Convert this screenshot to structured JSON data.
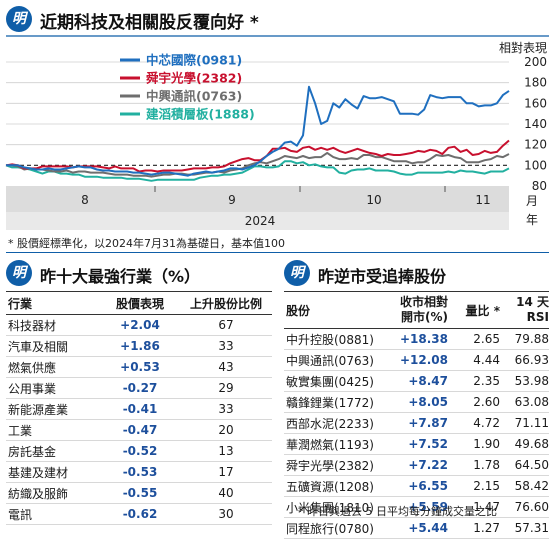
{
  "colors": {
    "brand": "#0f5ea8",
    "smic": "#1f6fbf",
    "sunny": "#c8102e",
    "zte": "#6e6e6e",
    "jianto": "#22b0a0",
    "band": "#dcdcdc"
  },
  "top": {
    "badge": "明",
    "title": "近期科技及相關股反覆向好 *",
    "footnote": "* 股價經標準化，以2024年7月31為基礎日，基本值100"
  },
  "chart_data": {
    "type": "line",
    "title": "近期科技及相關股反覆向好 *",
    "ylabel": "相對表現",
    "xlabel": "月",
    "xlabel2": "年",
    "year_label": "2024",
    "x_month_ticks": [
      "8",
      "9",
      "10",
      "11"
    ],
    "ylim": [
      80,
      200
    ],
    "y_ticks": [
      80,
      100,
      120,
      140,
      160,
      180,
      200
    ],
    "n_days": 84,
    "series": [
      {
        "name": "中芯國際(0981)",
        "color": "#1f6fbf",
        "values": [
          100,
          100,
          100,
          98,
          97,
          96,
          96,
          97,
          96,
          96,
          97,
          98,
          99,
          98,
          98,
          96,
          95,
          95,
          94,
          94,
          94,
          93,
          93,
          92,
          91,
          92,
          93,
          93,
          92,
          91,
          90,
          92,
          93,
          94,
          93,
          94,
          95,
          97,
          97,
          96,
          98,
          100,
          104,
          109,
          113,
          116,
          122,
          123,
          119,
          129,
          176,
          160,
          140,
          143,
          160,
          156,
          164,
          159,
          155,
          167,
          165,
          165,
          166,
          164,
          162,
          150,
          150,
          150,
          149,
          154,
          168,
          166,
          165,
          166,
          166,
          166,
          160,
          160,
          157,
          158,
          158,
          160,
          168,
          172
        ]
      },
      {
        "name": "舜宇光學(2382)",
        "color": "#c8102e",
        "values": [
          100,
          101,
          100,
          97,
          97,
          97,
          99,
          99,
          99,
          99,
          99,
          98,
          99,
          99,
          99,
          99,
          98,
          97,
          99,
          97,
          97,
          97,
          94,
          95,
          95,
          94,
          95,
          95,
          95,
          95,
          96,
          97,
          97,
          97,
          98,
          98,
          99,
          102,
          104,
          106,
          107,
          105,
          105,
          109,
          116,
          116,
          117,
          114,
          113,
          117,
          118,
          115,
          117,
          115,
          117,
          114,
          112,
          114,
          116,
          114,
          112,
          111,
          109,
          111,
          110,
          110,
          111,
          112,
          114,
          113,
          115,
          114,
          111,
          117,
          118,
          113,
          115,
          110,
          111,
          114,
          112,
          113,
          119,
          124
        ]
      },
      {
        "name": "中興通訊(0763)",
        "color": "#6e6e6e",
        "values": [
          100,
          100,
          99,
          96,
          97,
          96,
          96,
          95,
          94,
          94,
          95,
          93,
          94,
          94,
          93,
          93,
          93,
          92,
          91,
          91,
          91,
          90,
          90,
          90,
          89,
          90,
          91,
          91,
          92,
          92,
          91,
          91,
          92,
          93,
          93,
          94,
          93,
          95,
          96,
          97,
          100,
          102,
          103,
          102,
          104,
          106,
          109,
          108,
          107,
          109,
          107,
          108,
          108,
          112,
          108,
          106,
          106,
          107,
          106,
          110,
          110,
          108,
          108,
          106,
          104,
          104,
          104,
          102,
          103,
          103,
          106,
          110,
          109,
          110,
          108,
          107,
          103,
          103,
          103,
          105,
          106,
          109,
          108,
          111
        ]
      },
      {
        "name": "建滔積層板(1888)",
        "color": "#22b0a0",
        "values": [
          100,
          98,
          98,
          97,
          96,
          94,
          92,
          94,
          94,
          92,
          92,
          91,
          91,
          89,
          89,
          89,
          88,
          88,
          88,
          88,
          87,
          87,
          87,
          86,
          85,
          86,
          86,
          86,
          86,
          86,
          86,
          86,
          88,
          89,
          90,
          90,
          91,
          91,
          92,
          93,
          96,
          99,
          99,
          98,
          98,
          99,
          104,
          104,
          102,
          103,
          100,
          101,
          99,
          98,
          98,
          93,
          92,
          95,
          96,
          96,
          97,
          95,
          95,
          95,
          94,
          92,
          91,
          91,
          93,
          93,
          93,
          93,
          93,
          94,
          93,
          95,
          94,
          94,
          93,
          92,
          94,
          94,
          94,
          97
        ]
      }
    ]
  },
  "left": {
    "badge": "明",
    "title": "昨十大最強行業（%）",
    "headers": [
      "行業",
      "股價表現",
      "上升股份比例"
    ],
    "rows": [
      [
        "科技器材",
        "+2.04",
        "67"
      ],
      [
        "汽車及相關",
        "+1.86",
        "33"
      ],
      [
        "燃氣供應",
        "+0.53",
        "43"
      ],
      [
        "公用事業",
        "-0.27",
        "29"
      ],
      [
        "新能源產業",
        "-0.41",
        "33"
      ],
      [
        "工業",
        "-0.47",
        "20"
      ],
      [
        "房託基金",
        "-0.52",
        "13"
      ],
      [
        "基建及建材",
        "-0.53",
        "17"
      ],
      [
        "紡織及服飾",
        "-0.55",
        "40"
      ],
      [
        "電訊",
        "-0.62",
        "30"
      ]
    ]
  },
  "right": {
    "badge": "明",
    "title": "昨逆市受追捧股份",
    "headers": [
      "股份",
      "收市相對\n開市(%)",
      "量比 *",
      "14 天\nRSI"
    ],
    "rows": [
      [
        "中升控股(0881)",
        "+18.38",
        "2.65",
        "79.88"
      ],
      [
        "中興通訊(0763)",
        "+12.08",
        "4.44",
        "66.93"
      ],
      [
        "敏實集團(0425)",
        "+8.47",
        "2.35",
        "53.98"
      ],
      [
        "贛鋒鋰業(1772)",
        "+8.05",
        "2.60",
        "63.08"
      ],
      [
        "西部水泥(2233)",
        "+7.87",
        "4.72",
        "71.11"
      ],
      [
        "華潤燃氣(1193)",
        "+7.52",
        "1.90",
        "49.68"
      ],
      [
        "舜宇光學(2382)",
        "+7.22",
        "1.78",
        "64.50"
      ],
      [
        "五礦資源(1208)",
        "+6.55",
        "2.15",
        "58.42"
      ],
      [
        "小米集團(1810)",
        "+5.59",
        "1.47",
        "76.60"
      ],
      [
        "同程旅行(0780)",
        "+5.44",
        "1.27",
        "57.31"
      ]
    ],
    "footnote": "* 昨日與過去 5 日平均每分鐘成交量之比"
  }
}
